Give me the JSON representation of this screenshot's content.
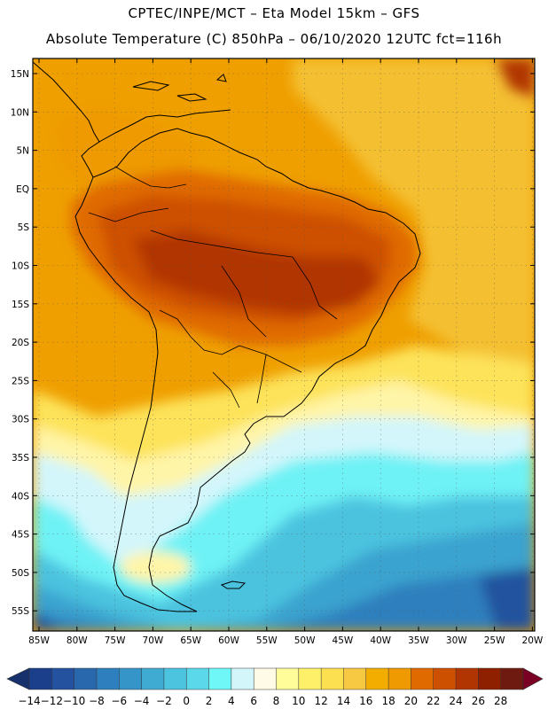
{
  "title_line1": "CPTEC/INPE/MCT –  Eta Model 15km – GFS",
  "title_line2": "Absolute Temperature (C) 850hPa – 06/10/2020 12UTC fct=116h",
  "lat_labels": [
    "15N",
    "10N",
    "5N",
    "EQ",
    "5S",
    "10S",
    "15S",
    "20S",
    "25S",
    "30S",
    "35S",
    "40S",
    "45S",
    "50S",
    "55S"
  ],
  "lon_labels": [
    "85W",
    "80W",
    "75W",
    "70W",
    "65W",
    "60W",
    "55W",
    "50W",
    "45W",
    "40W",
    "35W",
    "30W",
    "25W",
    "20W"
  ],
  "colorbar": {
    "labels": [
      "-14",
      "-12",
      "-10",
      "-8",
      "-6",
      "-4",
      "-2",
      "0",
      "2",
      "4",
      "6",
      "8",
      "10",
      "12",
      "14",
      "16",
      "18",
      "20",
      "22",
      "24",
      "26",
      "28"
    ],
    "colors": [
      "#1b3f8b",
      "#24529e",
      "#2a68ae",
      "#2e7fbd",
      "#3595c8",
      "#3fabd3",
      "#4cc3df",
      "#5bd8ea",
      "#6ff7f7",
      "#d3f6fb",
      "#fffbe6",
      "#fffd9a",
      "#fff06a",
      "#fde050",
      "#f7c842",
      "#f2ad00",
      "#ee9a00",
      "#e06a00",
      "#cd4f00",
      "#b13500",
      "#8e2000",
      "#6e1a10"
    ],
    "under_color": "#17316d",
    "over_color": "#7a0024"
  }
}
